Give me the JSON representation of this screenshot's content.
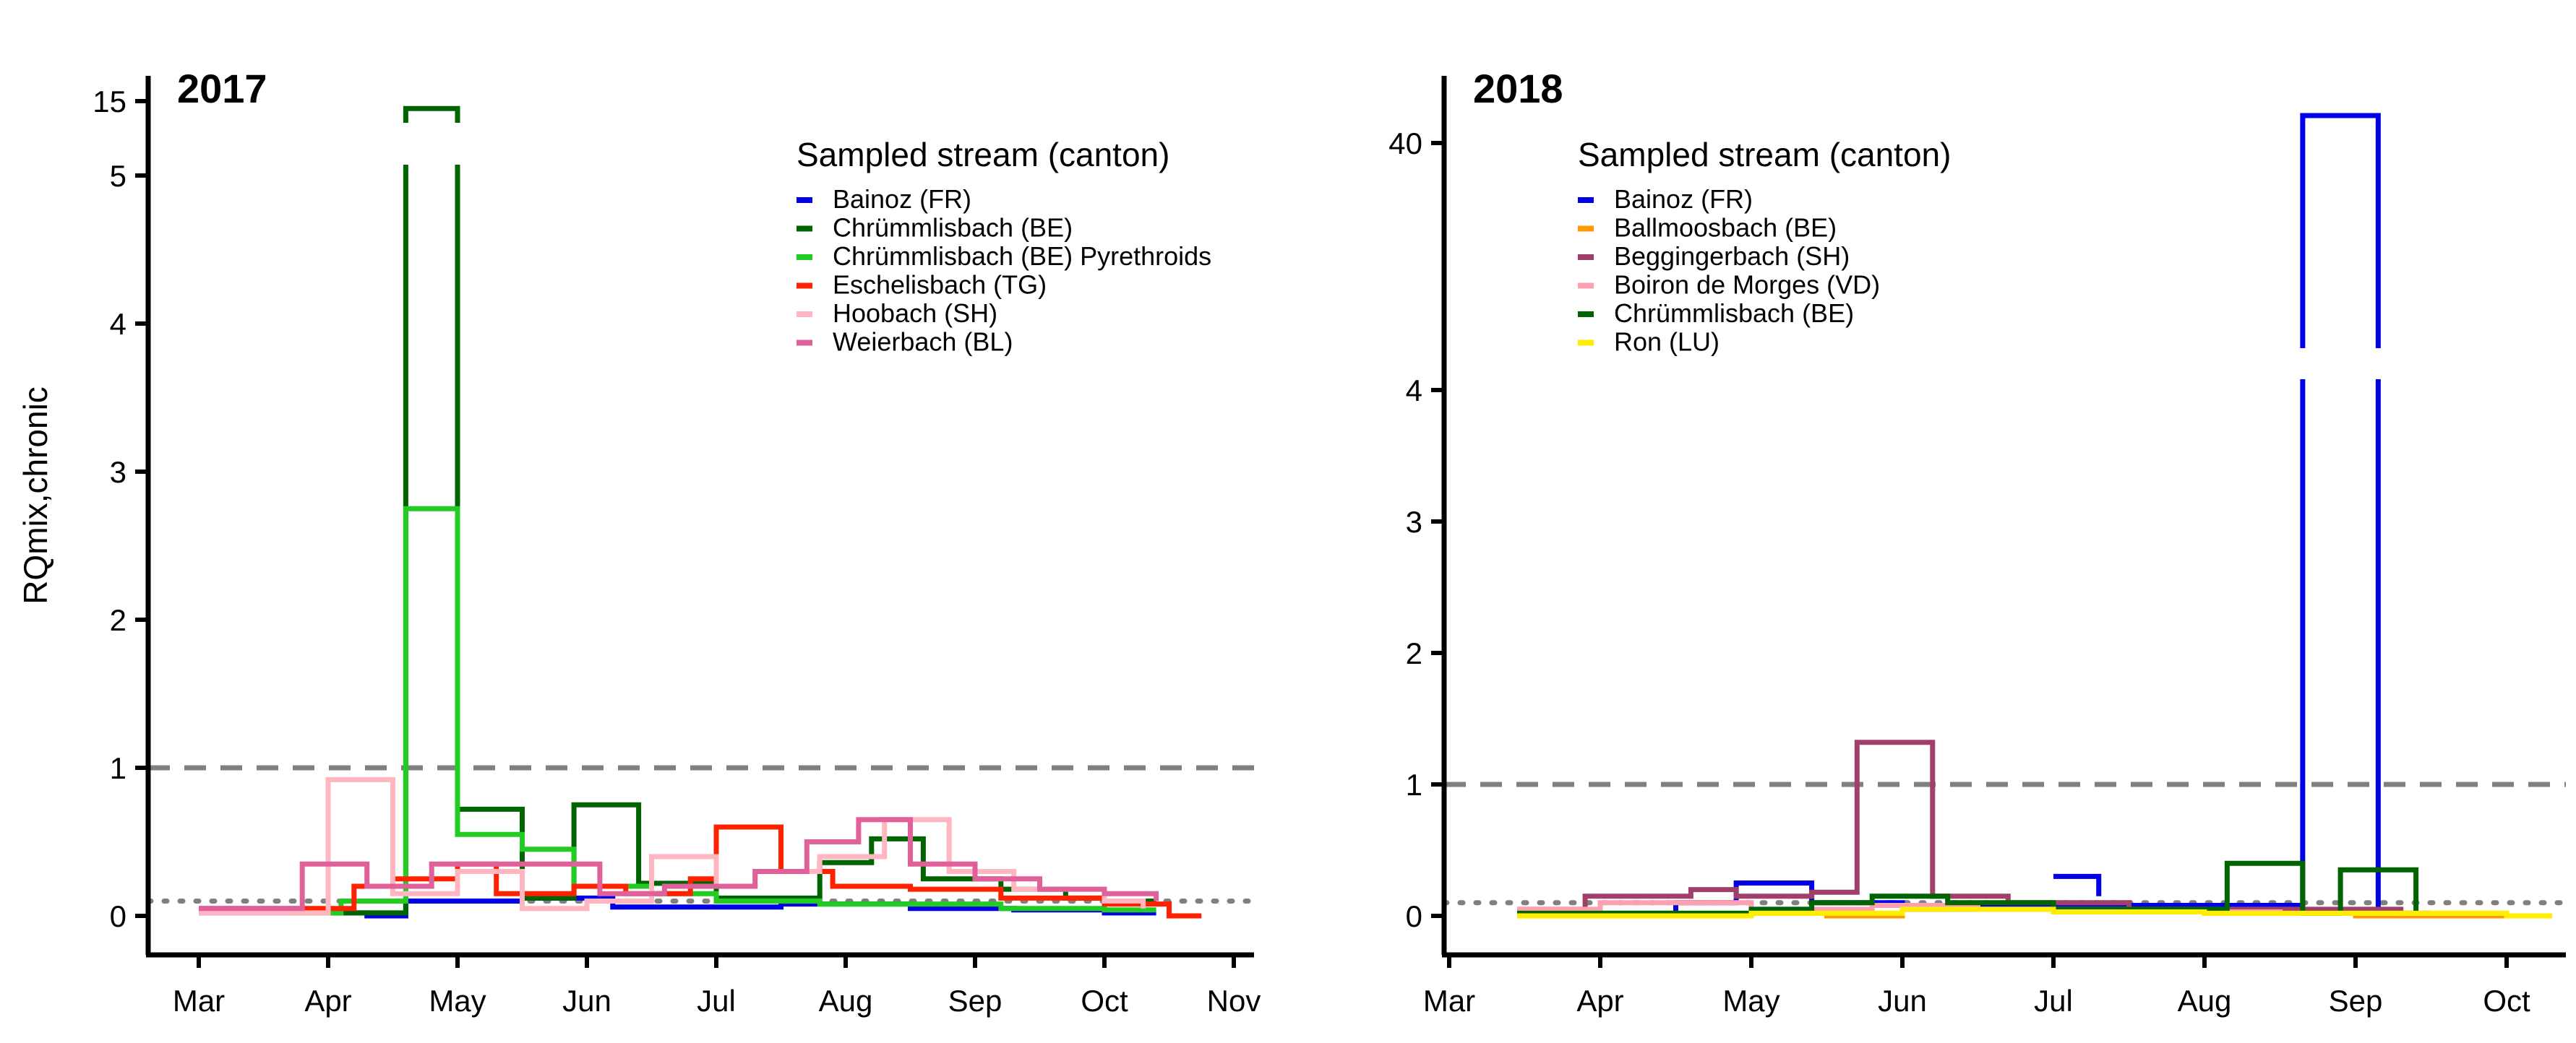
{
  "chart_data": [
    {
      "type": "line",
      "step": true,
      "panel_title": "2017",
      "ylabel": "RQmix,chronic",
      "y_ticks": [
        "0",
        "1",
        "2",
        "3",
        "4",
        "5",
        "15"
      ],
      "y_axis_break": "between 5 and 15",
      "x_ticks": [
        "Mar",
        "Apr",
        "May",
        "Jun",
        "Jul",
        "Aug",
        "Sep",
        "Oct",
        "Nov"
      ],
      "reference_lines": [
        {
          "value": 1,
          "style": "dashed",
          "color": "#808080"
        },
        {
          "value": 0.1,
          "style": "dotted",
          "color": "#808080"
        }
      ],
      "legend_title": "Sampled stream (canton)",
      "series": [
        {
          "name": "Bainoz (FR)",
          "color": "#0000E6",
          "points": [
            [
              0.0,
              0.02
            ],
            [
              1.1,
              0.02
            ],
            [
              1.3,
              0.0
            ],
            [
              1.6,
              0.1
            ],
            [
              2.5,
              0.12
            ],
            [
              3.2,
              0.06
            ],
            [
              4.0,
              0.06
            ],
            [
              4.5,
              0.08
            ],
            [
              5.5,
              0.05
            ],
            [
              6.3,
              0.04
            ],
            [
              7.0,
              0.02
            ],
            [
              7.4,
              0.02
            ]
          ]
        },
        {
          "name": "Chrümmlisbach (BE)",
          "color": "#006400",
          "points": [
            [
              0.7,
              0.02
            ],
            [
              1.6,
              14.0
            ],
            [
              2.0,
              0.72
            ],
            [
              2.5,
              0.12
            ],
            [
              2.9,
              0.75
            ],
            [
              3.4,
              0.22
            ],
            [
              4.0,
              0.12
            ],
            [
              4.8,
              0.36
            ],
            [
              5.2,
              0.52
            ],
            [
              5.6,
              0.25
            ],
            [
              6.2,
              0.18
            ],
            [
              6.7,
              0.12
            ],
            [
              7.0,
              0.1
            ],
            [
              7.4,
              0.1
            ]
          ]
        },
        {
          "name": "Chrümmlisbach (BE) Pyrethroids",
          "color": "#22CC22",
          "points": [
            [
              0.7,
              0.02
            ],
            [
              1.1,
              0.1
            ],
            [
              1.6,
              2.75
            ],
            [
              2.0,
              0.55
            ],
            [
              2.5,
              0.45
            ],
            [
              2.9,
              0.2
            ],
            [
              3.5,
              0.15
            ],
            [
              4.0,
              0.1
            ],
            [
              4.8,
              0.08
            ],
            [
              5.5,
              0.08
            ],
            [
              6.2,
              0.05
            ],
            [
              7.0,
              0.04
            ],
            [
              7.4,
              0.04
            ]
          ]
        },
        {
          "name": "Eschelisbach (TG)",
          "color": "#FF2200",
          "points": [
            [
              0.0,
              0.05
            ],
            [
              1.2,
              0.2
            ],
            [
              1.5,
              0.25
            ],
            [
              2.0,
              0.35
            ],
            [
              2.3,
              0.15
            ],
            [
              2.9,
              0.2
            ],
            [
              3.3,
              0.15
            ],
            [
              3.8,
              0.25
            ],
            [
              4.0,
              0.6
            ],
            [
              4.5,
              0.3
            ],
            [
              4.9,
              0.2
            ],
            [
              5.5,
              0.18
            ],
            [
              6.2,
              0.12
            ],
            [
              7.0,
              0.08
            ],
            [
              7.5,
              0.0
            ],
            [
              7.75,
              0.0
            ]
          ]
        },
        {
          "name": "Hoobach (SH)",
          "color": "#FFB6C1",
          "points": [
            [
              0.0,
              0.02
            ],
            [
              1.0,
              0.92
            ],
            [
              1.5,
              0.15
            ],
            [
              2.0,
              0.3
            ],
            [
              2.5,
              0.05
            ],
            [
              3.0,
              0.1
            ],
            [
              3.5,
              0.4
            ],
            [
              4.0,
              0.2
            ],
            [
              4.3,
              0.3
            ],
            [
              4.8,
              0.4
            ],
            [
              5.3,
              0.65
            ],
            [
              5.8,
              0.3
            ],
            [
              6.3,
              0.18
            ],
            [
              7.0,
              0.1
            ],
            [
              7.3,
              0.05
            ]
          ]
        },
        {
          "name": "Weierbach (BL)",
          "color": "#E0609A",
          "points": [
            [
              0.0,
              0.05
            ],
            [
              0.8,
              0.35
            ],
            [
              1.3,
              0.2
            ],
            [
              1.8,
              0.35
            ],
            [
              2.5,
              0.35
            ],
            [
              3.1,
              0.15
            ],
            [
              3.6,
              0.2
            ],
            [
              4.3,
              0.3
            ],
            [
              4.7,
              0.5
            ],
            [
              5.1,
              0.65
            ],
            [
              5.5,
              0.35
            ],
            [
              6.0,
              0.25
            ],
            [
              6.5,
              0.18
            ],
            [
              7.0,
              0.15
            ],
            [
              7.4,
              0.1
            ]
          ]
        }
      ]
    },
    {
      "type": "line",
      "step": true,
      "panel_title": "2018",
      "ylabel": "",
      "y_ticks": [
        "0",
        "1",
        "2",
        "3",
        "4",
        "40"
      ],
      "y_axis_break": "between 4 and 40",
      "x_ticks": [
        "Mar",
        "Apr",
        "May",
        "Jun",
        "Jul",
        "Aug",
        "Sep",
        "Oct"
      ],
      "reference_lines": [
        {
          "value": 1,
          "style": "dashed",
          "color": "#808080"
        },
        {
          "value": 0.1,
          "style": "dotted",
          "color": "#808080"
        }
      ],
      "legend_title": "Sampled stream (canton)",
      "series": [
        {
          "name": "Bainoz (FR)",
          "color": "#0000E6",
          "points": [
            [
              0.45,
              0.02
            ],
            [
              1.5,
              0.1
            ],
            [
              1.9,
              0.25
            ],
            [
              2.4,
              0.1
            ],
            [
              3.0,
              0.05
            ],
            [
              3.5,
              0.08
            ],
            [
              4.3,
              0.08
            ],
            [
              5.15,
              0.08
            ],
            [
              5.65,
              44.0
            ],
            [
              6.15,
              0.02
            ],
            [
              6.5,
              0.02
            ]
          ],
          "extra_segments": [
            [
              [
                4.0,
                0.3
              ],
              [
                4.3,
                0.3
              ],
              [
                4.3,
                0.15
              ]
            ]
          ]
        },
        {
          "name": "Ballmoosbach (BE)",
          "color": "#FF9900",
          "points": [
            [
              0.5,
              0.02
            ],
            [
              2.0,
              0.02
            ],
            [
              2.5,
              0.0
            ],
            [
              3.0,
              0.05
            ],
            [
              4.0,
              0.05
            ],
            [
              5.0,
              0.02
            ],
            [
              6.0,
              0.0
            ],
            [
              7.0,
              0.0
            ],
            [
              7.3,
              0.0
            ]
          ]
        },
        {
          "name": "Beggingerbach (SH)",
          "color": "#A0406A",
          "points": [
            [
              0.45,
              0.05
            ],
            [
              0.9,
              0.15
            ],
            [
              1.6,
              0.2
            ],
            [
              1.9,
              0.15
            ],
            [
              2.4,
              0.18
            ],
            [
              2.7,
              1.32
            ],
            [
              3.2,
              0.15
            ],
            [
              3.7,
              0.1
            ],
            [
              4.5,
              0.05
            ],
            [
              5.5,
              0.05
            ],
            [
              6.3,
              0.0
            ]
          ]
        },
        {
          "name": "Boiron de Morges (VD)",
          "color": "#FFA0B0",
          "points": [
            [
              0.45,
              0.05
            ],
            [
              1.0,
              0.1
            ],
            [
              2.0,
              0.05
            ],
            [
              2.8,
              0.08
            ],
            [
              3.5,
              0.05
            ],
            [
              4.5,
              0.03
            ],
            [
              5.5,
              0.02
            ],
            [
              6.5,
              0.02
            ],
            [
              7.0,
              0.0
            ]
          ]
        },
        {
          "name": "Chrümmlisbach (BE)",
          "color": "#006400",
          "points": [
            [
              0.45,
              0.02
            ],
            [
              1.2,
              0.02
            ],
            [
              2.0,
              0.05
            ],
            [
              2.4,
              0.1
            ],
            [
              2.8,
              0.15
            ],
            [
              3.3,
              0.1
            ],
            [
              4.0,
              0.05
            ],
            [
              4.5,
              0.05
            ],
            [
              5.15,
              0.4
            ],
            [
              5.65,
              0.02
            ],
            [
              5.9,
              0.35
            ],
            [
              6.4,
              0.02
            ]
          ]
        },
        {
          "name": "Ron (LU)",
          "color": "#FFEE00",
          "points": [
            [
              0.45,
              0.0
            ],
            [
              2.0,
              0.02
            ],
            [
              3.0,
              0.05
            ],
            [
              4.0,
              0.03
            ],
            [
              5.0,
              0.02
            ],
            [
              6.0,
              0.02
            ],
            [
              7.0,
              0.0
            ],
            [
              7.3,
              0.0
            ]
          ]
        }
      ]
    }
  ]
}
